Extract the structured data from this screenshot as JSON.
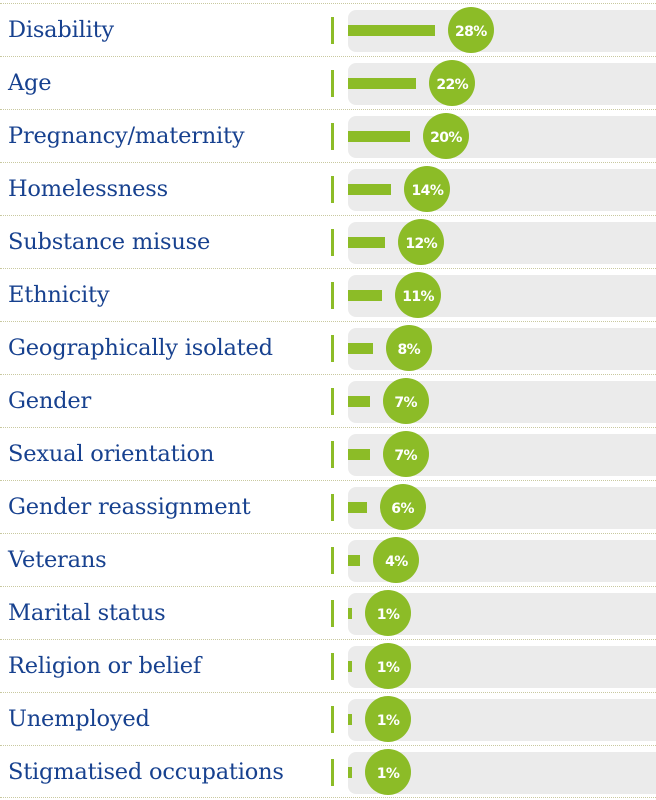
{
  "chart_data": {
    "type": "bar",
    "orientation": "horizontal",
    "categories": [
      "Disability",
      "Age",
      "Pregnancy/maternity",
      "Homelessness",
      "Substance misuse",
      "Ethnicity",
      "Geographically isolated",
      "Gender",
      "Sexual orientation",
      "Gender reassignment",
      "Veterans",
      "Marital status",
      "Religion or belief",
      "Unemployed",
      "Stigmatised occupations"
    ],
    "values": [
      28,
      22,
      20,
      14,
      12,
      11,
      8,
      7,
      7,
      6,
      4,
      1,
      1,
      1,
      1
    ],
    "value_labels": [
      "28%",
      "22%",
      "20%",
      "14%",
      "12%",
      "11%",
      "8%",
      "7%",
      "7%",
      "6%",
      "4%",
      "1%",
      "1%",
      "1%",
      "1%"
    ],
    "unit": "%",
    "xlim": [
      0,
      100
    ],
    "grid": false,
    "colors": {
      "bar": "#8cbc27",
      "label": "#17418f",
      "track": "#ebebeb",
      "separator": "#c9c9a0"
    }
  }
}
